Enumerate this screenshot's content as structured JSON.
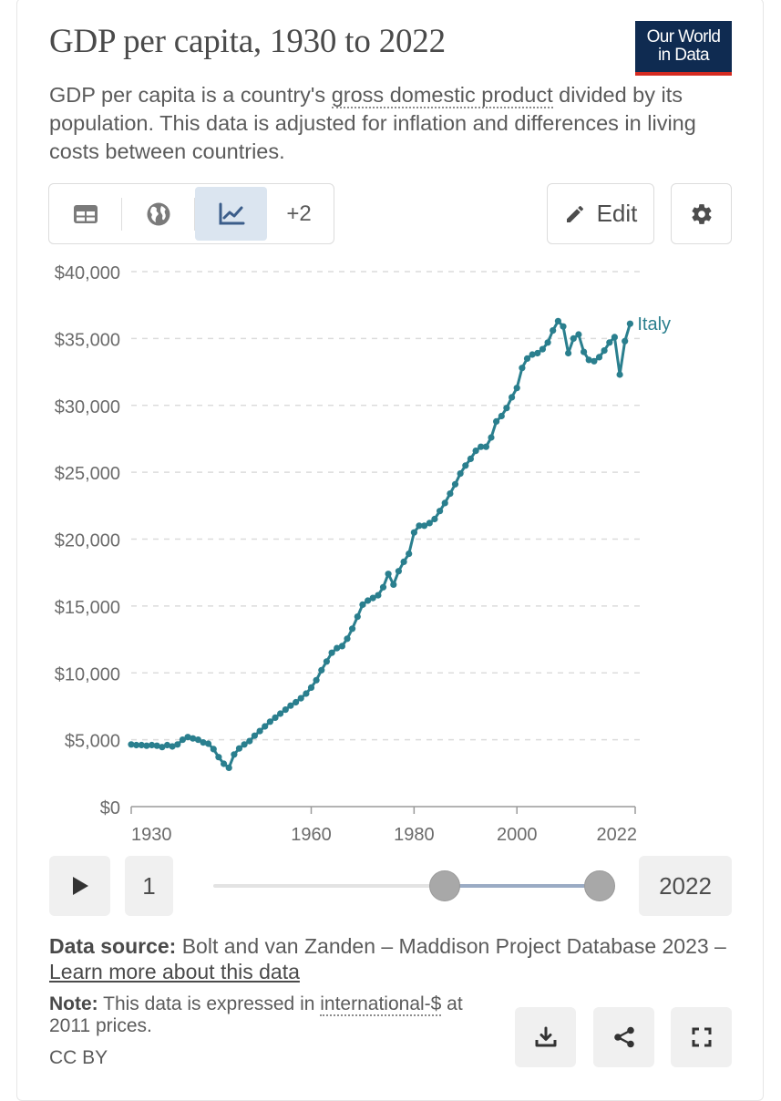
{
  "header": {
    "title": "GDP per capita, 1930 to 2022",
    "logo_line1": "Our World",
    "logo_line2": "in Data",
    "subtitle_before": "GDP per capita is a country's ",
    "subtitle_link": "gross domestic product",
    "subtitle_after": " divided by its population. This data is adjusted for inflation and differences in living costs between countries."
  },
  "tabs": [
    {
      "icon": "table-icon",
      "active": false
    },
    {
      "icon": "globe-icon",
      "active": false
    },
    {
      "icon": "line-chart-icon",
      "active": true
    }
  ],
  "tabs_more": "+2",
  "toolbar": {
    "edit_label": "Edit"
  },
  "colors": {
    "series": "#2a7f8e",
    "accent": "#3b5d8a",
    "logo_bg": "#0f2b51",
    "logo_bar": "#d42b21"
  },
  "chart_data": {
    "type": "line",
    "title": "GDP per capita, 1930 to 2022",
    "xlim": [
      1925,
      2023
    ],
    "ylim": [
      0,
      40000
    ],
    "y_ticks": [
      0,
      5000,
      10000,
      15000,
      20000,
      25000,
      30000,
      35000,
      40000
    ],
    "y_tick_labels": [
      "$0",
      "$5,000",
      "$10,000",
      "$15,000",
      "$20,000",
      "$25,000",
      "$30,000",
      "$35,000",
      "$40,000"
    ],
    "x_ticks": [
      1930,
      1960,
      1980,
      2000,
      2022
    ],
    "x_tick_labels": [
      "1930",
      "1960",
      "1980",
      "2000",
      "2022"
    ],
    "grid": true,
    "series": [
      {
        "name": "Italy",
        "x": [
          1925,
          1926,
          1927,
          1928,
          1929,
          1930,
          1931,
          1932,
          1933,
          1934,
          1935,
          1936,
          1937,
          1938,
          1939,
          1940,
          1941,
          1942,
          1943,
          1944,
          1945,
          1946,
          1947,
          1948,
          1949,
          1950,
          1951,
          1952,
          1953,
          1954,
          1955,
          1956,
          1957,
          1958,
          1959,
          1960,
          1961,
          1962,
          1963,
          1964,
          1965,
          1966,
          1967,
          1968,
          1969,
          1970,
          1971,
          1972,
          1973,
          1974,
          1975,
          1976,
          1977,
          1978,
          1979,
          1980,
          1981,
          1982,
          1983,
          1984,
          1985,
          1986,
          1987,
          1988,
          1989,
          1990,
          1991,
          1992,
          1993,
          1994,
          1995,
          1996,
          1997,
          1998,
          1999,
          2000,
          2001,
          2002,
          2003,
          2004,
          2005,
          2006,
          2007,
          2008,
          2009,
          2010,
          2011,
          2012,
          2013,
          2014,
          2015,
          2016,
          2017,
          2018,
          2019,
          2020,
          2021,
          2022
        ],
        "values": [
          4650,
          4600,
          4600,
          4550,
          4600,
          4550,
          4450,
          4600,
          4500,
          4650,
          5000,
          5200,
          5100,
          5000,
          4800,
          4700,
          4300,
          3700,
          3200,
          2900,
          3900,
          4350,
          4650,
          4900,
          5300,
          5650,
          6000,
          6350,
          6650,
          6950,
          7250,
          7550,
          7800,
          8100,
          8450,
          8900,
          9450,
          10200,
          10850,
          11500,
          11850,
          12000,
          12550,
          13300,
          14200,
          15100,
          15400,
          15600,
          15800,
          16400,
          17400,
          16600,
          17600,
          18300,
          18900,
          20500,
          21000,
          21000,
          21200,
          21500,
          22100,
          22700,
          23400,
          24100,
          24900,
          25500,
          26000,
          26600,
          26900,
          26900,
          27600,
          28800,
          29200,
          29800,
          30600,
          31300,
          32800,
          33500,
          33800,
          33900,
          34200,
          34700,
          35600,
          36300,
          35900,
          33900,
          35000,
          35300,
          34000,
          33400,
          33300,
          33600,
          34100,
          34700,
          35100,
          32300,
          34800,
          36100
        ]
      }
    ]
  },
  "timeline": {
    "start_label": "1",
    "end_label": "2022",
    "range_start_fraction": 0.6,
    "range_end_fraction": 1.0
  },
  "footer": {
    "source_label": "Data source:",
    "source_text": " Bolt and van Zanden – Maddison Project Database 2023 – ",
    "source_link": "Learn more about this data",
    "note_label": "Note:",
    "note_before": " This data is expressed in ",
    "note_link": "international-$",
    "note_after": " at 2011 prices.",
    "license": "CC BY"
  },
  "actions": [
    {
      "icon": "download-icon"
    },
    {
      "icon": "share-icon"
    },
    {
      "icon": "fullscreen-icon"
    }
  ]
}
